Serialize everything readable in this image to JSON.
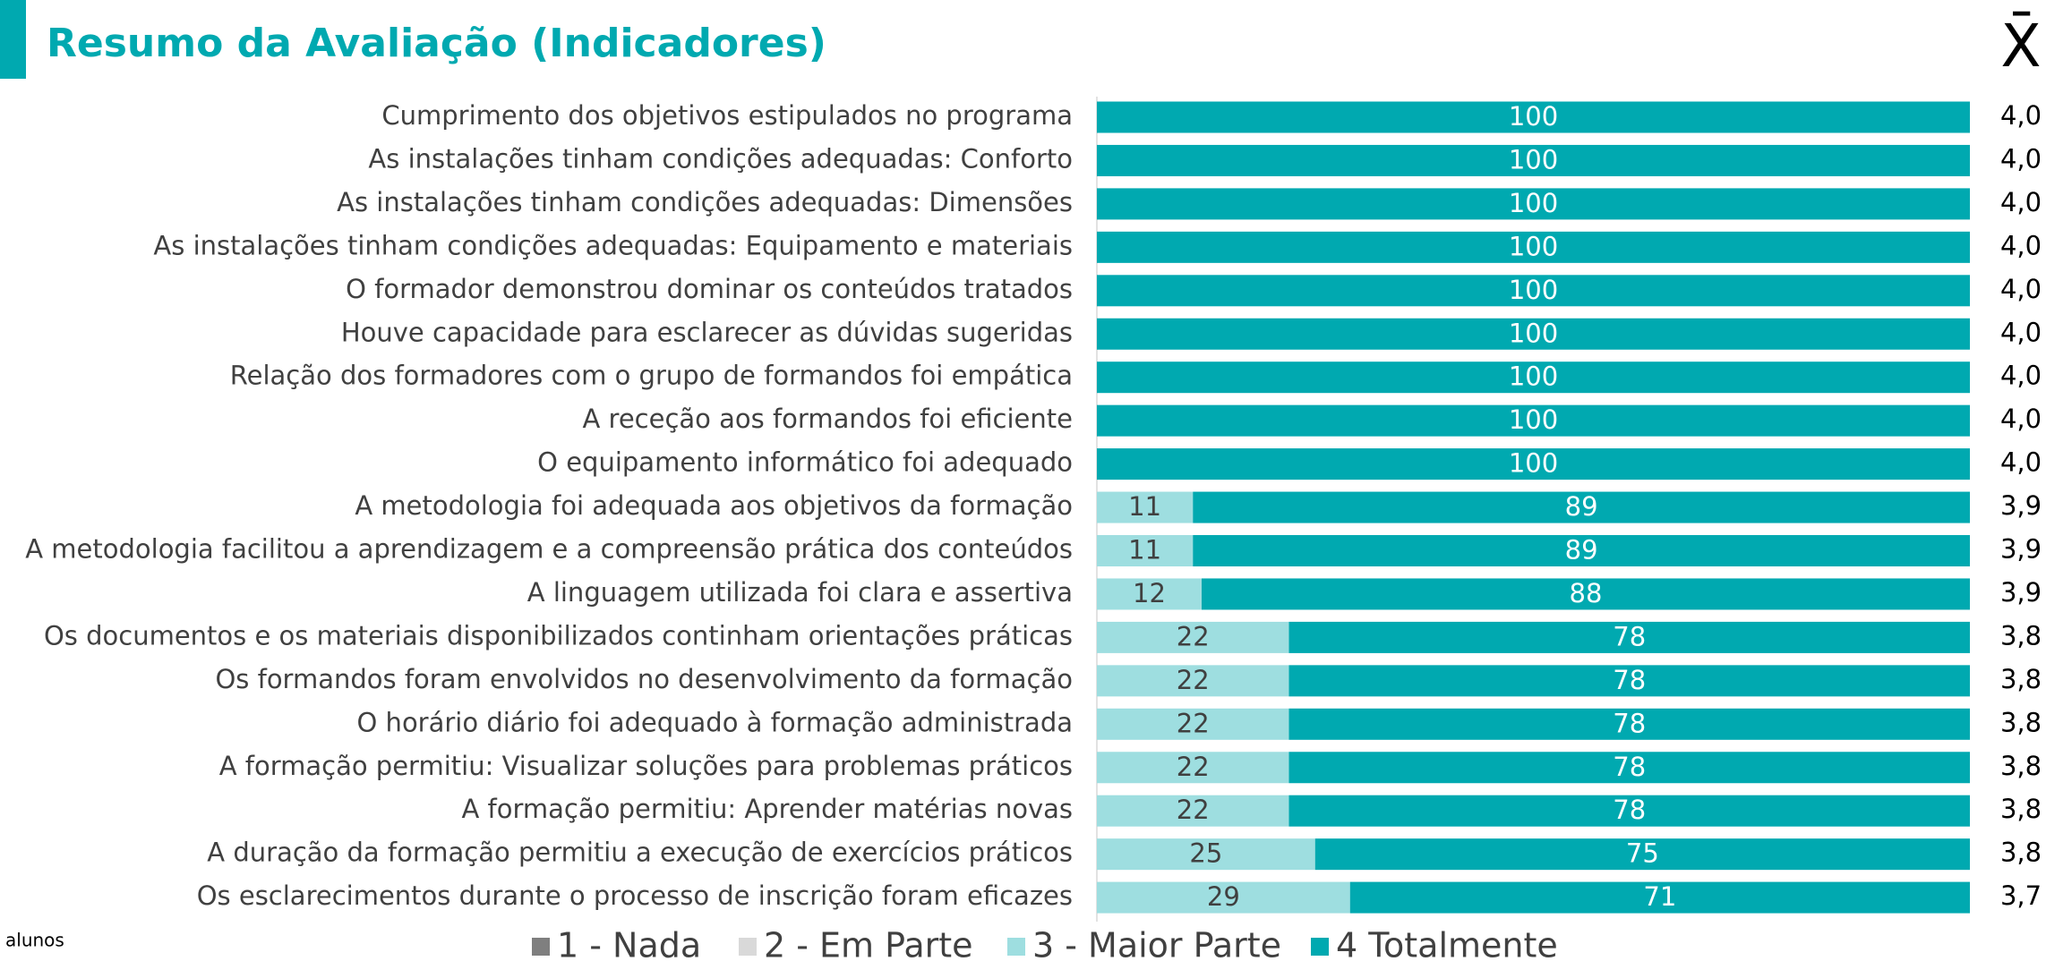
{
  "chart_data": {
    "type": "stacked-bar",
    "title": "Resumo da Avaliação (Indicadores)",
    "mean_header": "X̄",
    "footnote": "alunos",
    "xlim": [
      0,
      100
    ],
    "categories": [
      "Cumprimento dos objetivos estipulados no programa",
      "As instalações tinham condições adequadas: Conforto",
      "As instalações tinham condições adequadas: Dimensões",
      "As instalações tinham condições adequadas: Equipamento e materiais",
      "O formador demonstrou dominar os conteúdos tratados",
      "Houve capacidade para esclarecer as dúvidas sugeridas",
      "Relação dos formadores com o grupo de formandos foi empática",
      "A receção aos formandos foi eficiente",
      "O equipamento informático foi adequado",
      "A metodologia foi adequada aos objetivos da formação",
      "A metodologia facilitou a aprendizagem e a compreensão prática dos conteúdos",
      "A linguagem utilizada foi clara e assertiva",
      "Os documentos e os materiais disponibilizados continham orientações práticas",
      "Os formandos foram envolvidos no desenvolvimento da formação",
      "O horário diário foi adequado à formação administrada",
      "A formação permitiu: Visualizar soluções para problemas práticos",
      "A formação permitiu: Aprender matérias novas",
      "A duração da formação permitiu a execução de exercícios práticos",
      "Os esclarecimentos durante o processo de inscrição foram eficazes"
    ],
    "series": [
      {
        "name": "1 - Nada",
        "color": "#7f7f7f",
        "label_color": "#ffffff",
        "values": [
          0,
          0,
          0,
          0,
          0,
          0,
          0,
          0,
          0,
          0,
          0,
          0,
          0,
          0,
          0,
          0,
          0,
          0,
          0
        ]
      },
      {
        "name": "2 - Em Parte",
        "color": "#d9d9d9",
        "label_color": "#404040",
        "values": [
          0,
          0,
          0,
          0,
          0,
          0,
          0,
          0,
          0,
          0,
          0,
          0,
          0,
          0,
          0,
          0,
          0,
          0,
          0
        ]
      },
      {
        "name": "3 - Maior Parte",
        "color": "#9edee0",
        "label_color": "#404040",
        "values": [
          0,
          0,
          0,
          0,
          0,
          0,
          0,
          0,
          0,
          11,
          11,
          12,
          22,
          22,
          22,
          22,
          22,
          25,
          29
        ]
      },
      {
        "name": "4 Totalmente",
        "color": "#00a9b0",
        "label_color": "#ffffff",
        "values": [
          100,
          100,
          100,
          100,
          100,
          100,
          100,
          100,
          100,
          89,
          89,
          88,
          78,
          78,
          78,
          78,
          78,
          75,
          71
        ]
      }
    ],
    "means": [
      4.0,
      4.0,
      4.0,
      4.0,
      4.0,
      4.0,
      4.0,
      4.0,
      4.0,
      3.9,
      3.9,
      3.9,
      3.8,
      3.8,
      3.8,
      3.8,
      3.8,
      3.8,
      3.7
    ],
    "mean_labels": [
      "4,0",
      "4,0",
      "4,0",
      "4,0",
      "4,0",
      "4,0",
      "4,0",
      "4,0",
      "4,0",
      "3,9",
      "3,9",
      "3,9",
      "3,8",
      "3,8",
      "3,8",
      "3,8",
      "3,8",
      "3,8",
      "3,7"
    ]
  }
}
